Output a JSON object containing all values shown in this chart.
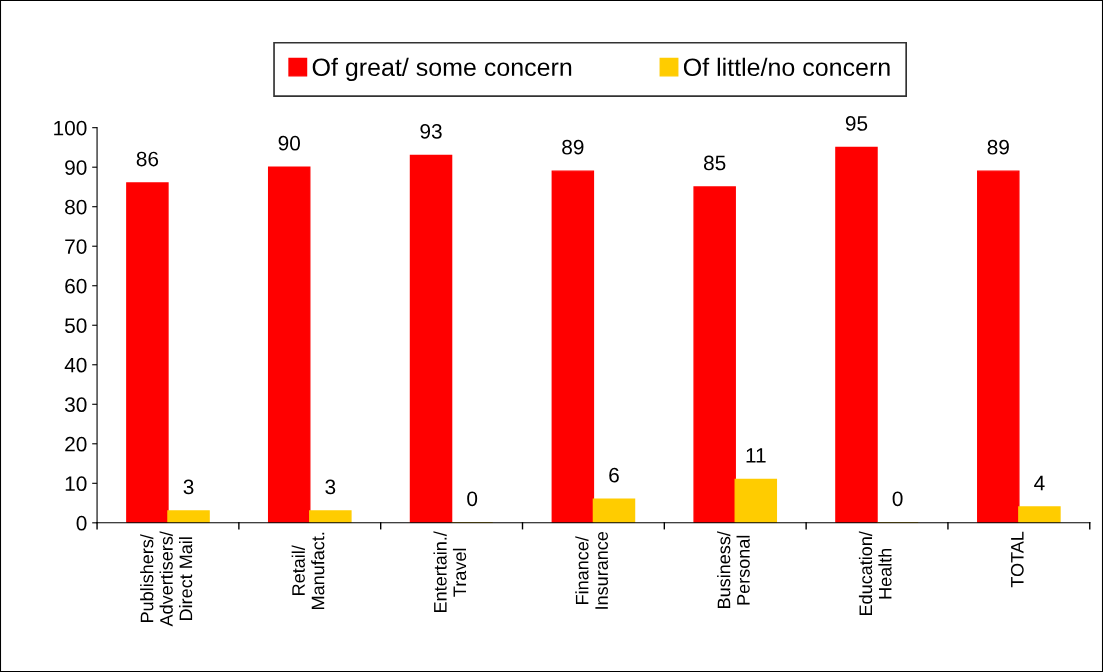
{
  "chart_data": {
    "type": "bar",
    "categories": [
      "Publishers/\nAdvertisers/\nDirect Mail",
      "Retail/\nManufact.",
      "Entertain./\nTravel",
      "Finance/\nInsurance",
      "Business/\nPersonal",
      "Education/\nHealth",
      "TOTAL"
    ],
    "series": [
      {
        "name": "Of great/ some concern",
        "color": "#ff0000",
        "values": [
          86,
          90,
          93,
          89,
          85,
          95,
          89
        ]
      },
      {
        "name": "Of little/no concern",
        "color": "#ffcc00",
        "values": [
          3,
          3,
          0,
          6,
          11,
          0,
          4
        ]
      }
    ],
    "ylim": [
      0,
      100
    ],
    "yticks": [
      0,
      10,
      20,
      30,
      40,
      50,
      60,
      70,
      80,
      90,
      100
    ],
    "grid": false,
    "legend": "top",
    "data_labels": true
  }
}
